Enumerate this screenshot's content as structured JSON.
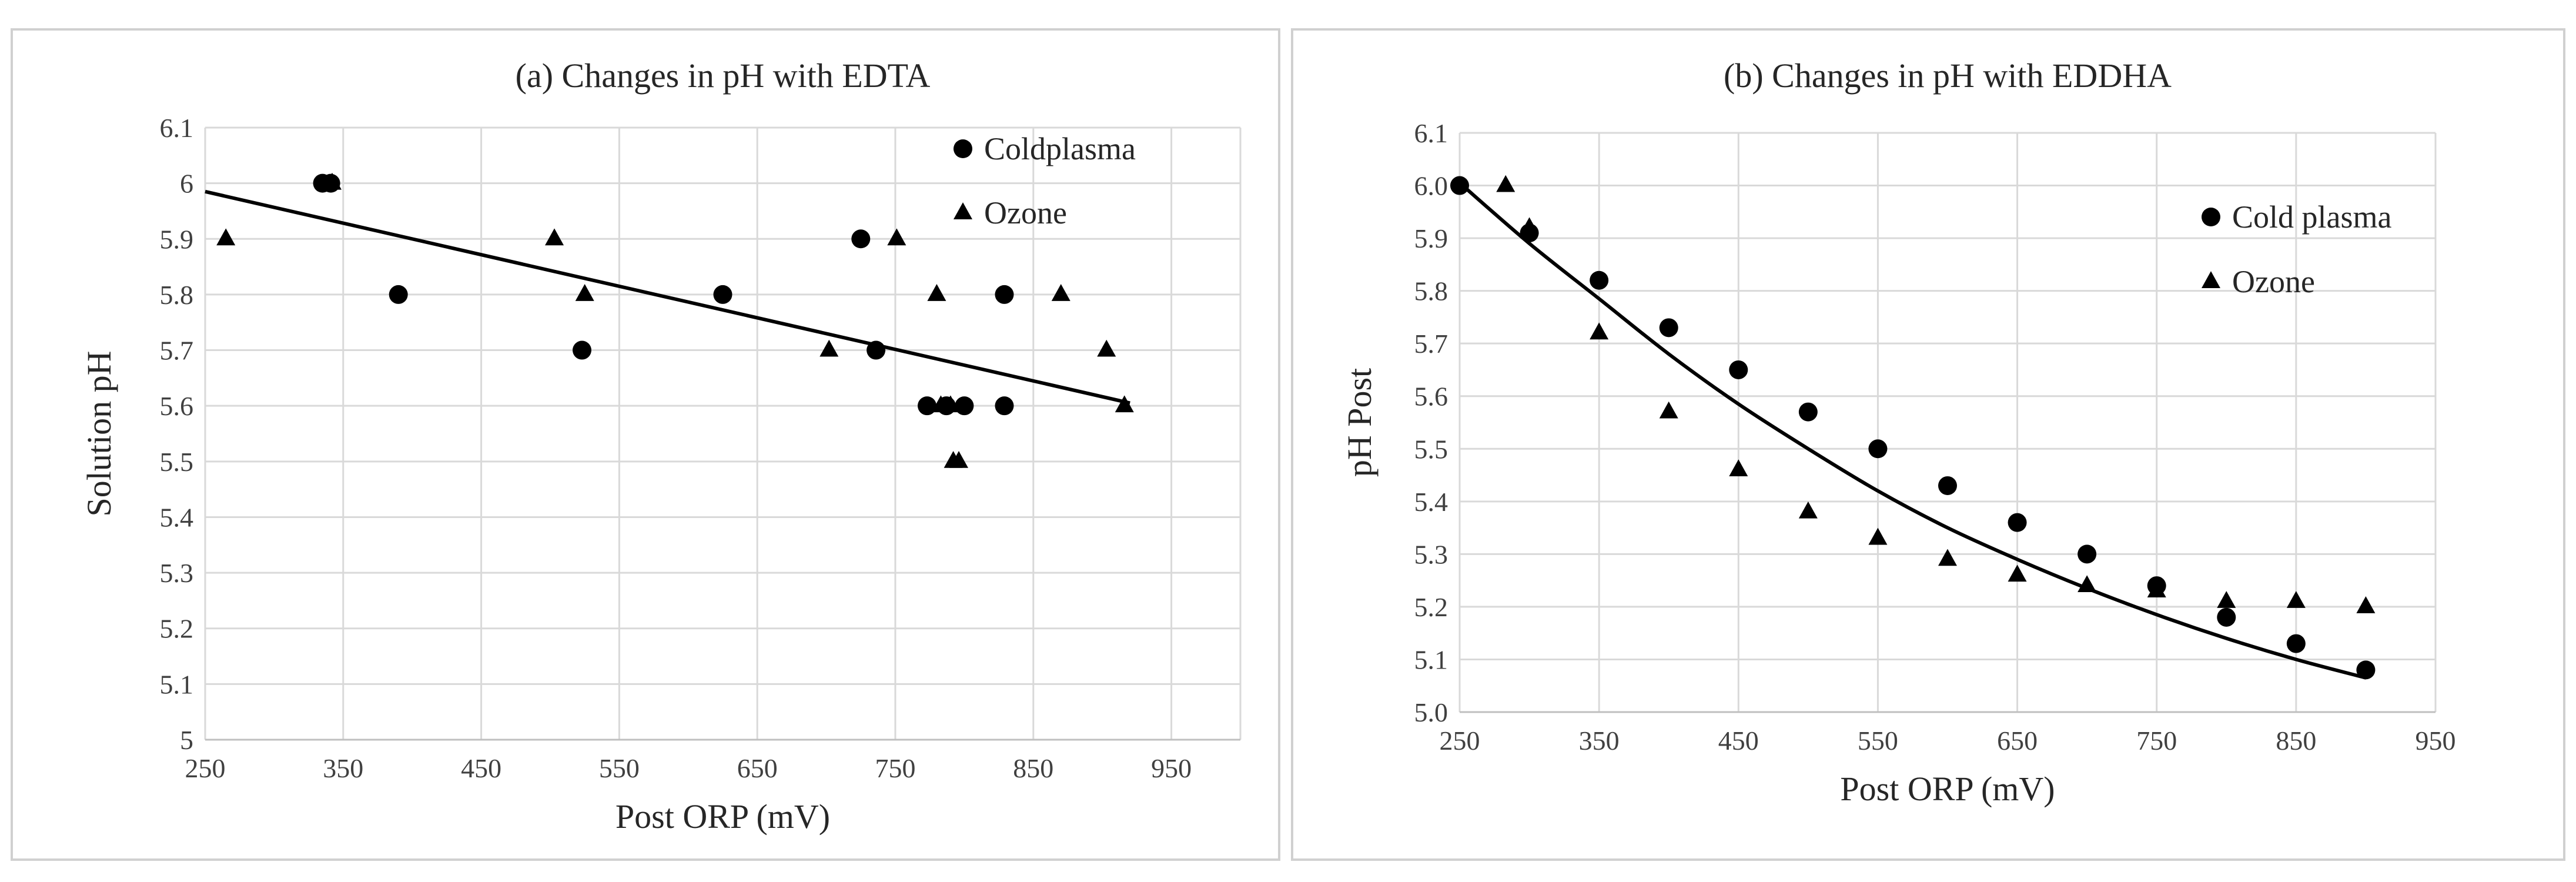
{
  "chart_data": [
    {
      "type": "scatter",
      "title": "(a) Changes in pH with EDTA",
      "xlabel": "Post ORP (mV)",
      "ylabel": "Solution pH",
      "xlim": [
        250,
        1000
      ],
      "ylim": [
        5.0,
        6.1
      ],
      "xticks": [
        "250",
        "350",
        "450",
        "550",
        "650",
        "750",
        "850",
        "950"
      ],
      "yticks": [
        "5",
        "5.1",
        "5.2",
        "5.3",
        "5.4",
        "5.5",
        "5.6",
        "5.7",
        "5.8",
        "5.9",
        "6",
        "6.1"
      ],
      "legend_position": "top-right",
      "series": [
        {
          "name": "Coldplasma",
          "marker": "circle",
          "x": [
            335,
            341,
            390,
            523,
            625,
            725,
            736,
            773,
            787,
            800,
            829,
            829
          ],
          "y": [
            6.0,
            6.0,
            5.8,
            5.7,
            5.8,
            5.9,
            5.7,
            5.6,
            5.6,
            5.6,
            5.8,
            5.6
          ]
        },
        {
          "name": "Ozone",
          "marker": "triangle",
          "x": [
            265,
            342,
            503,
            525,
            702,
            751,
            780,
            783,
            790,
            792,
            796,
            870,
            903,
            916
          ],
          "y": [
            5.9,
            6.0,
            5.9,
            5.8,
            5.7,
            5.9,
            5.8,
            5.6,
            5.6,
            5.5,
            5.5,
            5.8,
            5.7,
            5.6
          ]
        }
      ],
      "trendline": {
        "type": "linear",
        "x": [
          250,
          920
        ],
        "y": [
          5.985,
          5.605
        ]
      }
    },
    {
      "type": "scatter",
      "title": "(b) Changes in pH with EDDHA",
      "xlabel": "Post ORP (mV)",
      "ylabel": "pH Post",
      "xlim": [
        250,
        950
      ],
      "ylim": [
        5.0,
        6.1
      ],
      "xticks": [
        "250",
        "350",
        "450",
        "550",
        "650",
        "750",
        "850",
        "950"
      ],
      "yticks": [
        "5.0",
        "5.1",
        "5.2",
        "5.3",
        "5.4",
        "5.5",
        "5.6",
        "5.7",
        "5.8",
        "5.9",
        "6.0",
        "6.1"
      ],
      "legend_position": "top-right",
      "series": [
        {
          "name": "Cold plasma",
          "marker": "circle",
          "x": [
            250,
            300,
            350,
            400,
            450,
            500,
            550,
            600,
            650,
            700,
            750,
            800,
            850,
            900
          ],
          "y": [
            6.0,
            5.91,
            5.82,
            5.73,
            5.65,
            5.57,
            5.5,
            5.43,
            5.36,
            5.3,
            5.24,
            5.18,
            5.13,
            5.08
          ]
        },
        {
          "name": "Ozone",
          "marker": "triangle",
          "x": [
            283,
            300,
            350,
            400,
            450,
            500,
            550,
            600,
            650,
            700,
            750,
            800,
            850,
            900
          ],
          "y": [
            6.0,
            5.92,
            5.72,
            5.57,
            5.46,
            5.38,
            5.33,
            5.29,
            5.26,
            5.24,
            5.23,
            5.21,
            5.21,
            5.2
          ]
        }
      ],
      "trendline": {
        "type": "polynomial",
        "x": [
          250,
          300,
          350,
          400,
          450,
          500,
          550,
          600,
          650,
          700,
          750,
          800,
          850,
          900
        ],
        "y": [
          6.005,
          5.89,
          5.785,
          5.68,
          5.585,
          5.5,
          5.42,
          5.35,
          5.29,
          5.235,
          5.185,
          5.14,
          5.1,
          5.065
        ]
      }
    }
  ]
}
